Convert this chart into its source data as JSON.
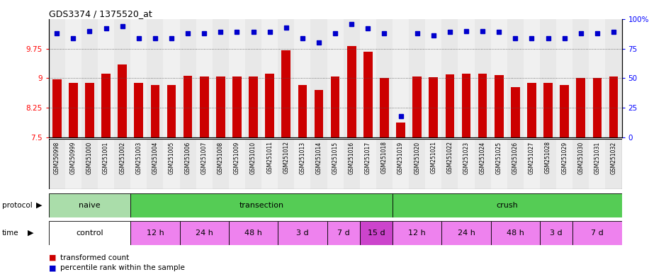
{
  "title": "GDS3374 / 1375520_at",
  "samples": [
    "GSM250998",
    "GSM250999",
    "GSM251000",
    "GSM251001",
    "GSM251002",
    "GSM251003",
    "GSM251004",
    "GSM251005",
    "GSM251006",
    "GSM251007",
    "GSM251008",
    "GSM251009",
    "GSM251010",
    "GSM251011",
    "GSM251012",
    "GSM251013",
    "GSM251014",
    "GSM251015",
    "GSM251016",
    "GSM251017",
    "GSM251018",
    "GSM251019",
    "GSM251020",
    "GSM251021",
    "GSM251022",
    "GSM251023",
    "GSM251024",
    "GSM251025",
    "GSM251026",
    "GSM251027",
    "GSM251028",
    "GSM251029",
    "GSM251030",
    "GSM251031",
    "GSM251032"
  ],
  "bar_values": [
    8.98,
    8.88,
    8.88,
    9.12,
    9.35,
    8.88,
    8.82,
    8.82,
    9.06,
    9.05,
    9.05,
    9.05,
    9.05,
    9.12,
    9.7,
    8.82,
    8.7,
    9.05,
    9.82,
    9.68,
    9.0,
    7.88,
    9.05,
    9.02,
    9.1,
    9.12,
    9.12,
    9.08,
    8.78,
    8.88,
    8.88,
    8.82,
    9.0,
    9.0,
    9.05
  ],
  "percentile_values": [
    88,
    84,
    90,
    92,
    94,
    84,
    84,
    84,
    88,
    88,
    89,
    89,
    89,
    89,
    93,
    84,
    80,
    88,
    96,
    92,
    88,
    18,
    88,
    86,
    89,
    90,
    90,
    89,
    84,
    84,
    84,
    84,
    88,
    88,
    89
  ],
  "bar_color": "#cc0000",
  "dot_color": "#0000cc",
  "ylim_left": [
    7.5,
    10.5
  ],
  "ylim_right": [
    0,
    100
  ],
  "yticks_left": [
    7.5,
    8.25,
    9.0,
    9.75
  ],
  "yticks_right": [
    0,
    25,
    50,
    75,
    100
  ],
  "ytick_labels_left": [
    "7.5",
    "8.25",
    "9",
    "9.75"
  ],
  "ytick_labels_right": [
    "0",
    "25",
    "50",
    "75",
    "100%"
  ],
  "grid_values": [
    8.25,
    9.0,
    9.75
  ],
  "proto_groups": [
    {
      "label": "naive",
      "color": "#aaddaa",
      "start": 0,
      "end": 5
    },
    {
      "label": "transection",
      "color": "#55cc55",
      "start": 5,
      "end": 21
    },
    {
      "label": "crush",
      "color": "#55cc55",
      "start": 21,
      "end": 35
    }
  ],
  "time_groups": [
    {
      "label": "control",
      "color": "#ffffff",
      "start": 0,
      "end": 5
    },
    {
      "label": "12 h",
      "color": "#ee82ee",
      "start": 5,
      "end": 8
    },
    {
      "label": "24 h",
      "color": "#ee82ee",
      "start": 8,
      "end": 11
    },
    {
      "label": "48 h",
      "color": "#ee82ee",
      "start": 11,
      "end": 14
    },
    {
      "label": "3 d",
      "color": "#ee82ee",
      "start": 14,
      "end": 17
    },
    {
      "label": "7 d",
      "color": "#ee82ee",
      "start": 17,
      "end": 19
    },
    {
      "label": "15 d",
      "color": "#cc44cc",
      "start": 19,
      "end": 21
    },
    {
      "label": "12 h",
      "color": "#ee82ee",
      "start": 21,
      "end": 24
    },
    {
      "label": "24 h",
      "color": "#ee82ee",
      "start": 24,
      "end": 27
    },
    {
      "label": "48 h",
      "color": "#ee82ee",
      "start": 27,
      "end": 30
    },
    {
      "label": "3 d",
      "color": "#ee82ee",
      "start": 30,
      "end": 32
    },
    {
      "label": "7 d",
      "color": "#ee82ee",
      "start": 32,
      "end": 35
    }
  ]
}
